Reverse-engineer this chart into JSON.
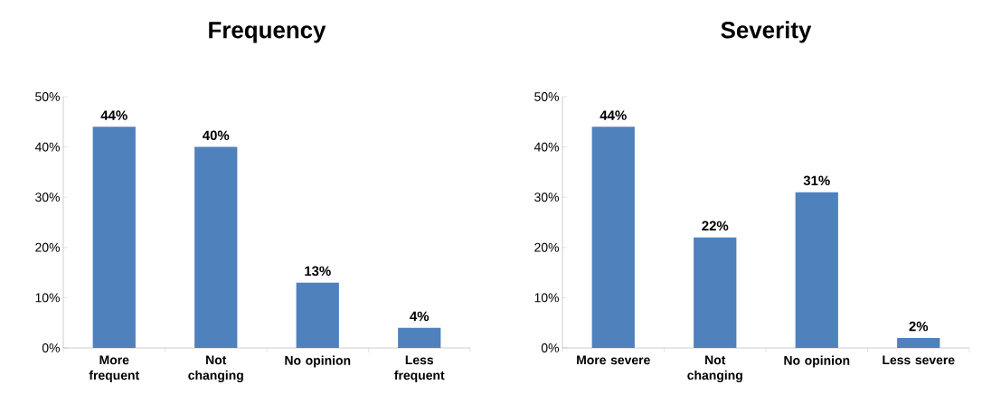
{
  "chart_data": [
    {
      "type": "bar",
      "title": "Frequency",
      "categories": [
        "More frequent",
        "Not changing",
        "No opinion",
        "Less frequent"
      ],
      "values": [
        44,
        40,
        13,
        4
      ],
      "value_labels": [
        "44%",
        "40%",
        "13%",
        "4%"
      ],
      "color": "#4f81bd",
      "ylim": [
        0,
        50
      ],
      "yticks": [
        {
          "value": 0,
          "label": "0%"
        },
        {
          "value": 10,
          "label": "10%"
        },
        {
          "value": 20,
          "label": "20%"
        },
        {
          "value": 30,
          "label": "30%"
        },
        {
          "value": 40,
          "label": "40%"
        },
        {
          "value": 50,
          "label": "50%"
        }
      ]
    },
    {
      "type": "bar",
      "title": "Severity",
      "categories": [
        "More severe",
        "Not changing",
        "No opinion",
        "Less severe"
      ],
      "values": [
        44,
        22,
        31,
        2
      ],
      "value_labels": [
        "44%",
        "22%",
        "31%",
        "2%"
      ],
      "color": "#4f81bd",
      "ylim": [
        0,
        50
      ],
      "yticks": [
        {
          "value": 0,
          "label": "0%"
        },
        {
          "value": 10,
          "label": "10%"
        },
        {
          "value": 20,
          "label": "20%"
        },
        {
          "value": 30,
          "label": "30%"
        },
        {
          "value": 40,
          "label": "40%"
        },
        {
          "value": 50,
          "label": "50%"
        }
      ]
    }
  ]
}
